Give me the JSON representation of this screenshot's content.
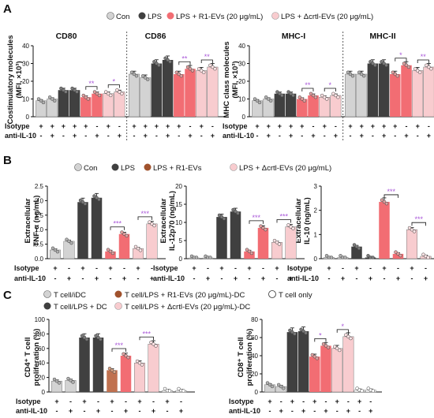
{
  "colors": {
    "con": "#d3d3d3",
    "lps": "#404040",
    "r1": "#f26d73",
    "dctrl": "#f8cccf",
    "sig": "#a855d8",
    "ink": "#111111"
  },
  "panels": {
    "A": {
      "label": "A",
      "legend": [
        "Con",
        "LPS",
        "LPS + R1-EVs (20 μg/mL)",
        "LPS + Δcrtl-EVs (20 μg/mL)"
      ],
      "left_ylabel": [
        "Costimulatory molecules",
        "(MFI, ×10³)"
      ],
      "right_ylabel": [
        "MHC class molecules",
        "(MFI, ×10³)"
      ],
      "titles": [
        "CD80",
        "CD86",
        "MHC-I",
        "MHC-II"
      ]
    },
    "B": {
      "label": "B",
      "legend": [
        "Con",
        "LPS",
        "LPS + R1-EVs",
        "LPS + Δcrtl-EVs (20 μg/mL)"
      ],
      "ylabels": [
        [
          "Extracellular",
          "TNF-α (ng/mL)"
        ],
        [
          "Extracellular",
          "IL-12p70 (ng/mL)"
        ],
        [
          "Extracellular",
          "IL-10 (ng/mL)"
        ]
      ]
    },
    "C": {
      "label": "C",
      "legend": [
        "T cell/iDC",
        "T cell/LPS + R1-EVs (20 μg/mL)-DC",
        "T cell only",
        "T cell/LPS + DC",
        "T cell/LPS + Δcrtl-EVs (20 μg/mL)-DC"
      ],
      "ylabels": [
        [
          "CD4⁺ T cell",
          "proliferation (%)"
        ],
        [
          "CD8⁺ T cell",
          "proliferation (%)"
        ]
      ]
    }
  },
  "row_labels": {
    "isotype": "Isotype",
    "anti": "anti-IL-10"
  },
  "chart_data": [
    {
      "id": "A-left",
      "type": "bar",
      "ylabel": "Costimulatory molecules (MFI, ×10³)",
      "ylim": [
        0,
        40
      ],
      "yticks": [
        0,
        10,
        20,
        30,
        40
      ],
      "groups": [
        {
          "title": "CD80",
          "values": [
            9,
            10,
            15,
            15,
            11,
            13,
            13,
            14
          ],
          "sig": [
            {
              "a": 4,
              "b": 5,
              "label": "**"
            },
            {
              "a": 6,
              "b": 7,
              "label": "*"
            }
          ]
        },
        {
          "title": "CD86",
          "values": [
            24,
            22,
            30,
            32,
            24,
            27,
            26,
            28
          ],
          "sig": [
            {
              "a": 4,
              "b": 5,
              "label": "**"
            },
            {
              "a": 6,
              "b": 7,
              "label": "**"
            }
          ]
        }
      ],
      "fill_order": [
        "con",
        "con",
        "lps",
        "lps",
        "r1",
        "r1",
        "dctrl",
        "dctrl"
      ],
      "isotype": [
        "+",
        "+",
        "+",
        "+",
        "+",
        "-",
        "+",
        "-"
      ],
      "anti_il10": [
        "-",
        "+",
        "-",
        "+",
        "-",
        "+",
        "-",
        "+"
      ]
    },
    {
      "id": "A-right",
      "type": "bar",
      "ylabel": "MHC class molecules (MFI, ×10³)",
      "ylim": [
        0,
        40
      ],
      "yticks": [
        0,
        10,
        20,
        30,
        40
      ],
      "groups": [
        {
          "title": "MHC-I",
          "values": [
            9,
            10,
            13,
            13,
            10,
            12,
            11,
            12
          ],
          "sig": [
            {
              "a": 4,
              "b": 5,
              "label": "**"
            },
            {
              "a": 6,
              "b": 7,
              "label": "*"
            }
          ]
        },
        {
          "title": "MHC-II",
          "values": [
            24,
            24,
            30,
            30,
            24,
            29,
            26,
            28
          ],
          "sig": [
            {
              "a": 4,
              "b": 5,
              "label": "*"
            },
            {
              "a": 6,
              "b": 7,
              "label": "**"
            }
          ]
        }
      ],
      "fill_order": [
        "con",
        "con",
        "lps",
        "lps",
        "r1",
        "r1",
        "dctrl",
        "dctrl"
      ],
      "isotype": [
        "+",
        "+",
        "+",
        "+",
        "+",
        "-",
        "+",
        "-"
      ],
      "anti_il10": [
        "-",
        "+",
        "-",
        "+",
        "-",
        "+",
        "-",
        "+"
      ]
    },
    {
      "id": "B-tnf",
      "type": "bar",
      "ylabel": "Extracellular TNF-α (ng/mL)",
      "ylim": [
        0,
        2.5
      ],
      "yticks": [
        0.0,
        0.5,
        1.0,
        1.5,
        2.0,
        2.5
      ],
      "ydec": 1,
      "values": [
        0.3,
        0.6,
        1.95,
        2.1,
        0.25,
        0.85,
        0.35,
        1.2
      ],
      "fill_order": [
        "con",
        "con",
        "lps",
        "lps",
        "r1",
        "r1",
        "dctrl",
        "dctrl"
      ],
      "sig": [
        {
          "a": 4,
          "b": 5,
          "label": "***"
        },
        {
          "a": 6,
          "b": 7,
          "label": "***"
        }
      ],
      "isotype": [
        "+",
        "-",
        "+",
        "-",
        "+",
        "-",
        "+",
        "-"
      ],
      "anti_il10": [
        "-",
        "+",
        "-",
        "+",
        "-",
        "+",
        "-",
        "+"
      ]
    },
    {
      "id": "B-il12",
      "type": "bar",
      "ylabel": "Extracellular IL-12p70 (ng/mL)",
      "ylim": [
        0,
        20
      ],
      "yticks": [
        0,
        5,
        10,
        15,
        20
      ],
      "ydec": 0,
      "values": [
        0.2,
        0.2,
        11.5,
        13,
        2,
        8.5,
        4.5,
        8.8
      ],
      "fill_order": [
        "con",
        "con",
        "lps",
        "lps",
        "r1",
        "r1",
        "dctrl",
        "dctrl"
      ],
      "sig": [
        {
          "a": 4,
          "b": 5,
          "label": "***"
        },
        {
          "a": 6,
          "b": 7,
          "label": "***"
        }
      ],
      "isotype": [
        "+",
        "-",
        "+",
        "-",
        "+",
        "-",
        "+",
        "-"
      ],
      "anti_il10": [
        "-",
        "+",
        "-",
        "+",
        "-",
        "+",
        "-",
        "+"
      ]
    },
    {
      "id": "B-il10",
      "type": "bar",
      "ylabel": "Extracellular IL-10 (ng/mL)",
      "ylim": [
        0,
        3
      ],
      "yticks": [
        0,
        1,
        2,
        3
      ],
      "ydec": 0,
      "values": [
        0.05,
        0.05,
        0.5,
        0.05,
        2.35,
        0.2,
        1.2,
        0.1
      ],
      "fill_order": [
        "con",
        "con",
        "lps",
        "lps",
        "r1",
        "r1",
        "dctrl",
        "dctrl"
      ],
      "sig": [
        {
          "a": 4,
          "b": 5,
          "label": "***"
        },
        {
          "a": 6,
          "b": 7,
          "label": "***"
        }
      ],
      "isotype": [
        "+",
        "-",
        "+",
        "-",
        "+",
        "-",
        "+",
        "-"
      ],
      "anti_il10": [
        "-",
        "+",
        "-",
        "+",
        "-",
        "+",
        "-",
        "+"
      ]
    },
    {
      "id": "C-cd4",
      "type": "bar",
      "ylabel": "CD4⁺ T cell proliferation (%)",
      "ylim": [
        0,
        100
      ],
      "yticks": [
        0,
        20,
        40,
        60,
        80,
        100
      ],
      "ydec": 0,
      "values": [
        15,
        16,
        75,
        75,
        30,
        50,
        40,
        66,
        2,
        2
      ],
      "fill_order": [
        "con",
        "con",
        "lps",
        "lps",
        "r1c",
        "r1",
        "dctrl",
        "dctrl",
        "white",
        "white"
      ],
      "sig": [
        {
          "a": 4,
          "b": 5,
          "label": "***"
        },
        {
          "a": 6,
          "b": 7,
          "label": "***"
        }
      ],
      "isotype": [
        "+",
        "-",
        "+",
        "-",
        "+",
        "-",
        "+",
        "-",
        "+",
        "-"
      ],
      "anti_il10": [
        "-",
        "+",
        "-",
        "+",
        "-",
        "+",
        "-",
        "+",
        "-",
        "+"
      ]
    },
    {
      "id": "C-cd8",
      "type": "bar",
      "ylabel": "CD8⁺ T cell proliferation (%)",
      "ylim": [
        0,
        80
      ],
      "yticks": [
        0,
        20,
        40,
        60,
        80
      ],
      "ydec": 0,
      "values": [
        8,
        6,
        66,
        67,
        39,
        51,
        48,
        61,
        2,
        2
      ],
      "fill_order": [
        "con",
        "con",
        "lps",
        "lps",
        "r1",
        "r1",
        "dctrl",
        "dctrl",
        "white",
        "white"
      ],
      "sig": [
        {
          "a": 4,
          "b": 5,
          "label": "*"
        },
        {
          "a": 6,
          "b": 7,
          "label": "*"
        }
      ],
      "isotype": [
        "+",
        "-",
        "+",
        "-",
        "+",
        "-",
        "+",
        "-",
        "+",
        "-"
      ],
      "anti_il10": [
        "-",
        "+",
        "-",
        "+",
        "-",
        "+",
        "-",
        "+",
        "-",
        "+"
      ]
    }
  ]
}
